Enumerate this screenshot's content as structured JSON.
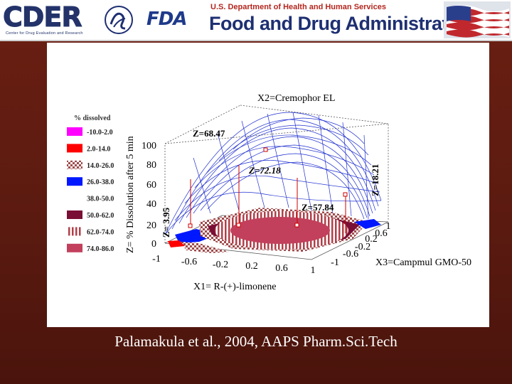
{
  "header": {
    "cder_logo_text": "CDER",
    "cder_subtitle": "Center for Drug Evaluation and Research",
    "fda_logo_text": "FDA",
    "hhs_text": "U.S. Department of Health and Human Services",
    "agency_name": "Food and Drug Administration"
  },
  "caption": "Palamakula et al., 2004, AAPS Pharm.Sci.Tech",
  "chart_data": {
    "type": "surface",
    "title": "X2=Cremophor EL",
    "zlabel": "Z= % Dissolution after 5 min",
    "xlabel": "X1= R-(+)-limonene",
    "ylabel": "X3=Campmul GMO-50",
    "x_ticks": [
      "-1",
      "-0.6",
      "-0.2",
      "0.2",
      "0.6",
      "1"
    ],
    "y_ticks": [
      "-1",
      "-0.6",
      "-0.2",
      "0.2",
      "0.6",
      "1"
    ],
    "z_ticks": [
      "0",
      "20",
      "40",
      "60",
      "80",
      "100"
    ],
    "zlim": [
      0,
      100
    ],
    "legend": {
      "title": "% dissolved",
      "items": [
        {
          "label": "-10.0-2.0",
          "color": "#ff00ff",
          "pattern": "solid"
        },
        {
          "label": "2.0-14.0",
          "color": "#ff0000",
          "pattern": "solid"
        },
        {
          "label": "14.0-26.0",
          "color": "#a04a4a",
          "pattern": "checker"
        },
        {
          "label": "26.0-38.0",
          "color": "#0018ff",
          "pattern": "solid"
        },
        {
          "label": "38.0-50.0",
          "color": "#ffffff",
          "pattern": "none"
        },
        {
          "label": "50.0-62.0",
          "color": "#7a0f35",
          "pattern": "solid"
        },
        {
          "label": "62.0-74.0",
          "color": "#b0404a",
          "pattern": "stripes"
        },
        {
          "label": "74.0-86.0",
          "color": "#c2405c",
          "pattern": "solid"
        }
      ]
    },
    "annotations": [
      "Z=68.47",
      "Z=72.18",
      "Z=57.84",
      "Z=18.21",
      "Z= 3.95"
    ]
  }
}
